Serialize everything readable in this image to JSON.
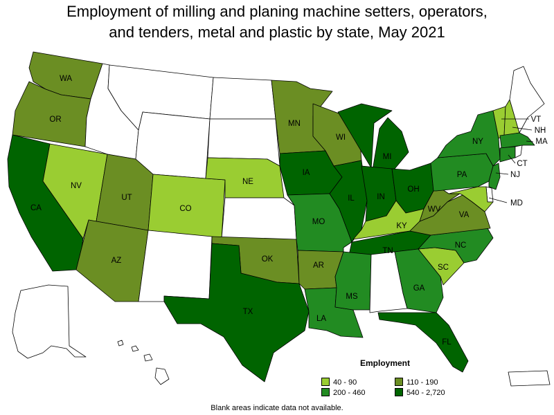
{
  "title": {
    "line1": "Employment of milling and planing machine setters, operators,",
    "line2": "and tenders, metal and plastic by state, May 2021"
  },
  "colors": {
    "c1": "#9acd32",
    "c2": "#6b8e23",
    "c3": "#228b22",
    "c4": "#006400",
    "blank": "#ffffff"
  },
  "legend": {
    "title": "Employment",
    "items": [
      {
        "label": "40 - 90",
        "color": "#9acd32"
      },
      {
        "label": "110 - 190",
        "color": "#6b8e23"
      },
      {
        "label": "200 - 460",
        "color": "#228b22"
      },
      {
        "label": "540 - 2,720",
        "color": "#006400"
      }
    ]
  },
  "note": "Blank areas indicate data not available.",
  "states": [
    {
      "abbr": "WA",
      "bin": "110 - 190"
    },
    {
      "abbr": "OR",
      "bin": "110 - 190"
    },
    {
      "abbr": "CA",
      "bin": "540 - 2,720"
    },
    {
      "abbr": "NV",
      "bin": "40 - 90"
    },
    {
      "abbr": "ID",
      "bin": ""
    },
    {
      "abbr": "MT",
      "bin": ""
    },
    {
      "abbr": "WY",
      "bin": ""
    },
    {
      "abbr": "UT",
      "bin": "110 - 190"
    },
    {
      "abbr": "AZ",
      "bin": "110 - 190"
    },
    {
      "abbr": "CO",
      "bin": "40 - 90"
    },
    {
      "abbr": "NM",
      "bin": ""
    },
    {
      "abbr": "ND",
      "bin": ""
    },
    {
      "abbr": "SD",
      "bin": ""
    },
    {
      "abbr": "NE",
      "bin": "40 - 90"
    },
    {
      "abbr": "KS",
      "bin": ""
    },
    {
      "abbr": "OK",
      "bin": "110 - 190"
    },
    {
      "abbr": "TX",
      "bin": "540 - 2,720"
    },
    {
      "abbr": "MN",
      "bin": "110 - 190"
    },
    {
      "abbr": "IA",
      "bin": "540 - 2,720"
    },
    {
      "abbr": "MO",
      "bin": "200 - 460"
    },
    {
      "abbr": "AR",
      "bin": "110 - 190"
    },
    {
      "abbr": "LA",
      "bin": "200 - 460"
    },
    {
      "abbr": "WI",
      "bin": "110 - 190"
    },
    {
      "abbr": "IL",
      "bin": "540 - 2,720"
    },
    {
      "abbr": "MI",
      "bin": "540 - 2,720"
    },
    {
      "abbr": "IN",
      "bin": "540 - 2,720"
    },
    {
      "abbr": "OH",
      "bin": "540 - 2,720"
    },
    {
      "abbr": "KY",
      "bin": "40 - 90"
    },
    {
      "abbr": "TN",
      "bin": "540 - 2,720"
    },
    {
      "abbr": "MS",
      "bin": "200 - 460"
    },
    {
      "abbr": "AL",
      "bin": ""
    },
    {
      "abbr": "GA",
      "bin": "200 - 460"
    },
    {
      "abbr": "FL",
      "bin": "540 - 2,720"
    },
    {
      "abbr": "SC",
      "bin": "40 - 90"
    },
    {
      "abbr": "NC",
      "bin": "200 - 460"
    },
    {
      "abbr": "VA",
      "bin": "110 - 190"
    },
    {
      "abbr": "WV",
      "bin": "110 - 190"
    },
    {
      "abbr": "PA",
      "bin": "200 - 460"
    },
    {
      "abbr": "NY",
      "bin": "200 - 460"
    },
    {
      "abbr": "VT",
      "bin": "40 - 90"
    },
    {
      "abbr": "NH",
      "bin": "40 - 90"
    },
    {
      "abbr": "ME",
      "bin": ""
    },
    {
      "abbr": "MA",
      "bin": "200 - 460"
    },
    {
      "abbr": "CT",
      "bin": "200 - 460"
    },
    {
      "abbr": "RI",
      "bin": ""
    },
    {
      "abbr": "NJ",
      "bin": "200 - 460"
    },
    {
      "abbr": "DE",
      "bin": ""
    },
    {
      "abbr": "MD",
      "bin": "40 - 90"
    },
    {
      "abbr": "AK",
      "bin": ""
    },
    {
      "abbr": "HI",
      "bin": ""
    },
    {
      "abbr": "PR",
      "bin": ""
    }
  ]
}
